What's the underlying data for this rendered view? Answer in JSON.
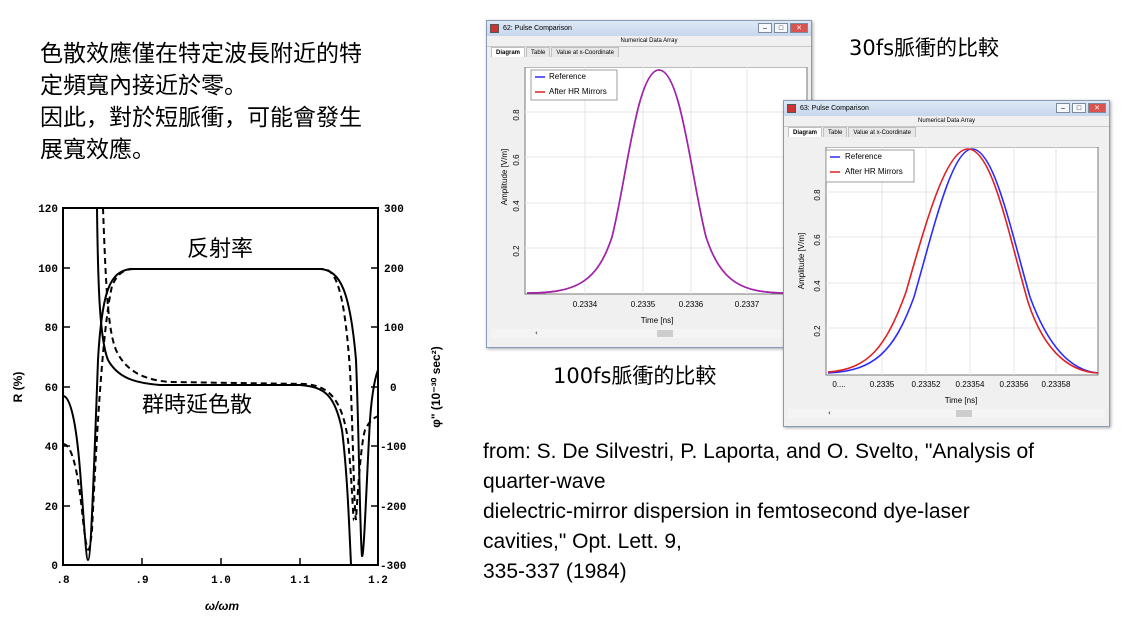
{
  "intro": {
    "line1": "色散效應僅在特定波長附近的特",
    "line2": "定頻寬內接近於零。",
    "line3": "因此，對於短脈衝，可能會發生",
    "line4": "展寬效應。"
  },
  "citation": {
    "line1": "from: S. De Silvestri, P. Laporta, and O. Svelto, \"Analysis of",
    "line2": "quarter-wave",
    "line3": "dielectric-mirror dispersion in femtosecond dye-laser",
    "line4": "cavities,\" Opt. Lett. 9,",
    "line5": "335-337 (1984)"
  },
  "captions": {
    "fs30": "30fs脈衝的比較",
    "fs100": "100fs脈衝的比較"
  },
  "plot": {
    "ylabel_left": "R (%)",
    "ylabel_right": "φ\" (10⁻³⁰ sec²)",
    "xlabel": "ω/ωm",
    "left_ticks": [
      "120",
      "100",
      "80",
      "60",
      "40",
      "20",
      "0"
    ],
    "right_ticks": [
      "300",
      "200",
      "100",
      "0",
      "-100",
      "-200",
      "-300"
    ],
    "x_ticks": [
      ".8",
      ".9",
      "1.0",
      "1.1",
      "1.2"
    ],
    "label_reflectivity": "反射率",
    "label_gdd": "群時延色散"
  },
  "window1": {
    "title": "62: Pulse Comparison",
    "menu": "Numerical Data Array",
    "tabs": [
      "Diagram",
      "Table",
      "Value at x-Coordinate"
    ],
    "legend": [
      "Reference",
      "After HR Mirrors"
    ],
    "ylabel": "Amplitude [V/m]",
    "xlabel": "Time [ns]",
    "yticks": [
      "0.8",
      "0.6",
      "0.4",
      "0.2"
    ],
    "xticks": [
      "0.2334",
      "0.2335",
      "0.2336",
      "0.2337"
    ]
  },
  "window2": {
    "title": "63: Pulse Comparison",
    "menu": "Numerical Data Array",
    "tabs": [
      "Diagram",
      "Table",
      "Value at x-Coordinate"
    ],
    "legend": [
      "Reference",
      "After HR Mirrors"
    ],
    "ylabel": "Amplitude [V/m]",
    "xlabel": "Time [ns]",
    "yticks": [
      "0.8",
      "0.6",
      "0.4",
      "0.2"
    ],
    "xticks": [
      "0....",
      "0.2335",
      "0.23352",
      "0.23354",
      "0.23356",
      "0.23358"
    ]
  },
  "colors": {
    "reference": "#2b2bff",
    "after": "#e02020"
  }
}
